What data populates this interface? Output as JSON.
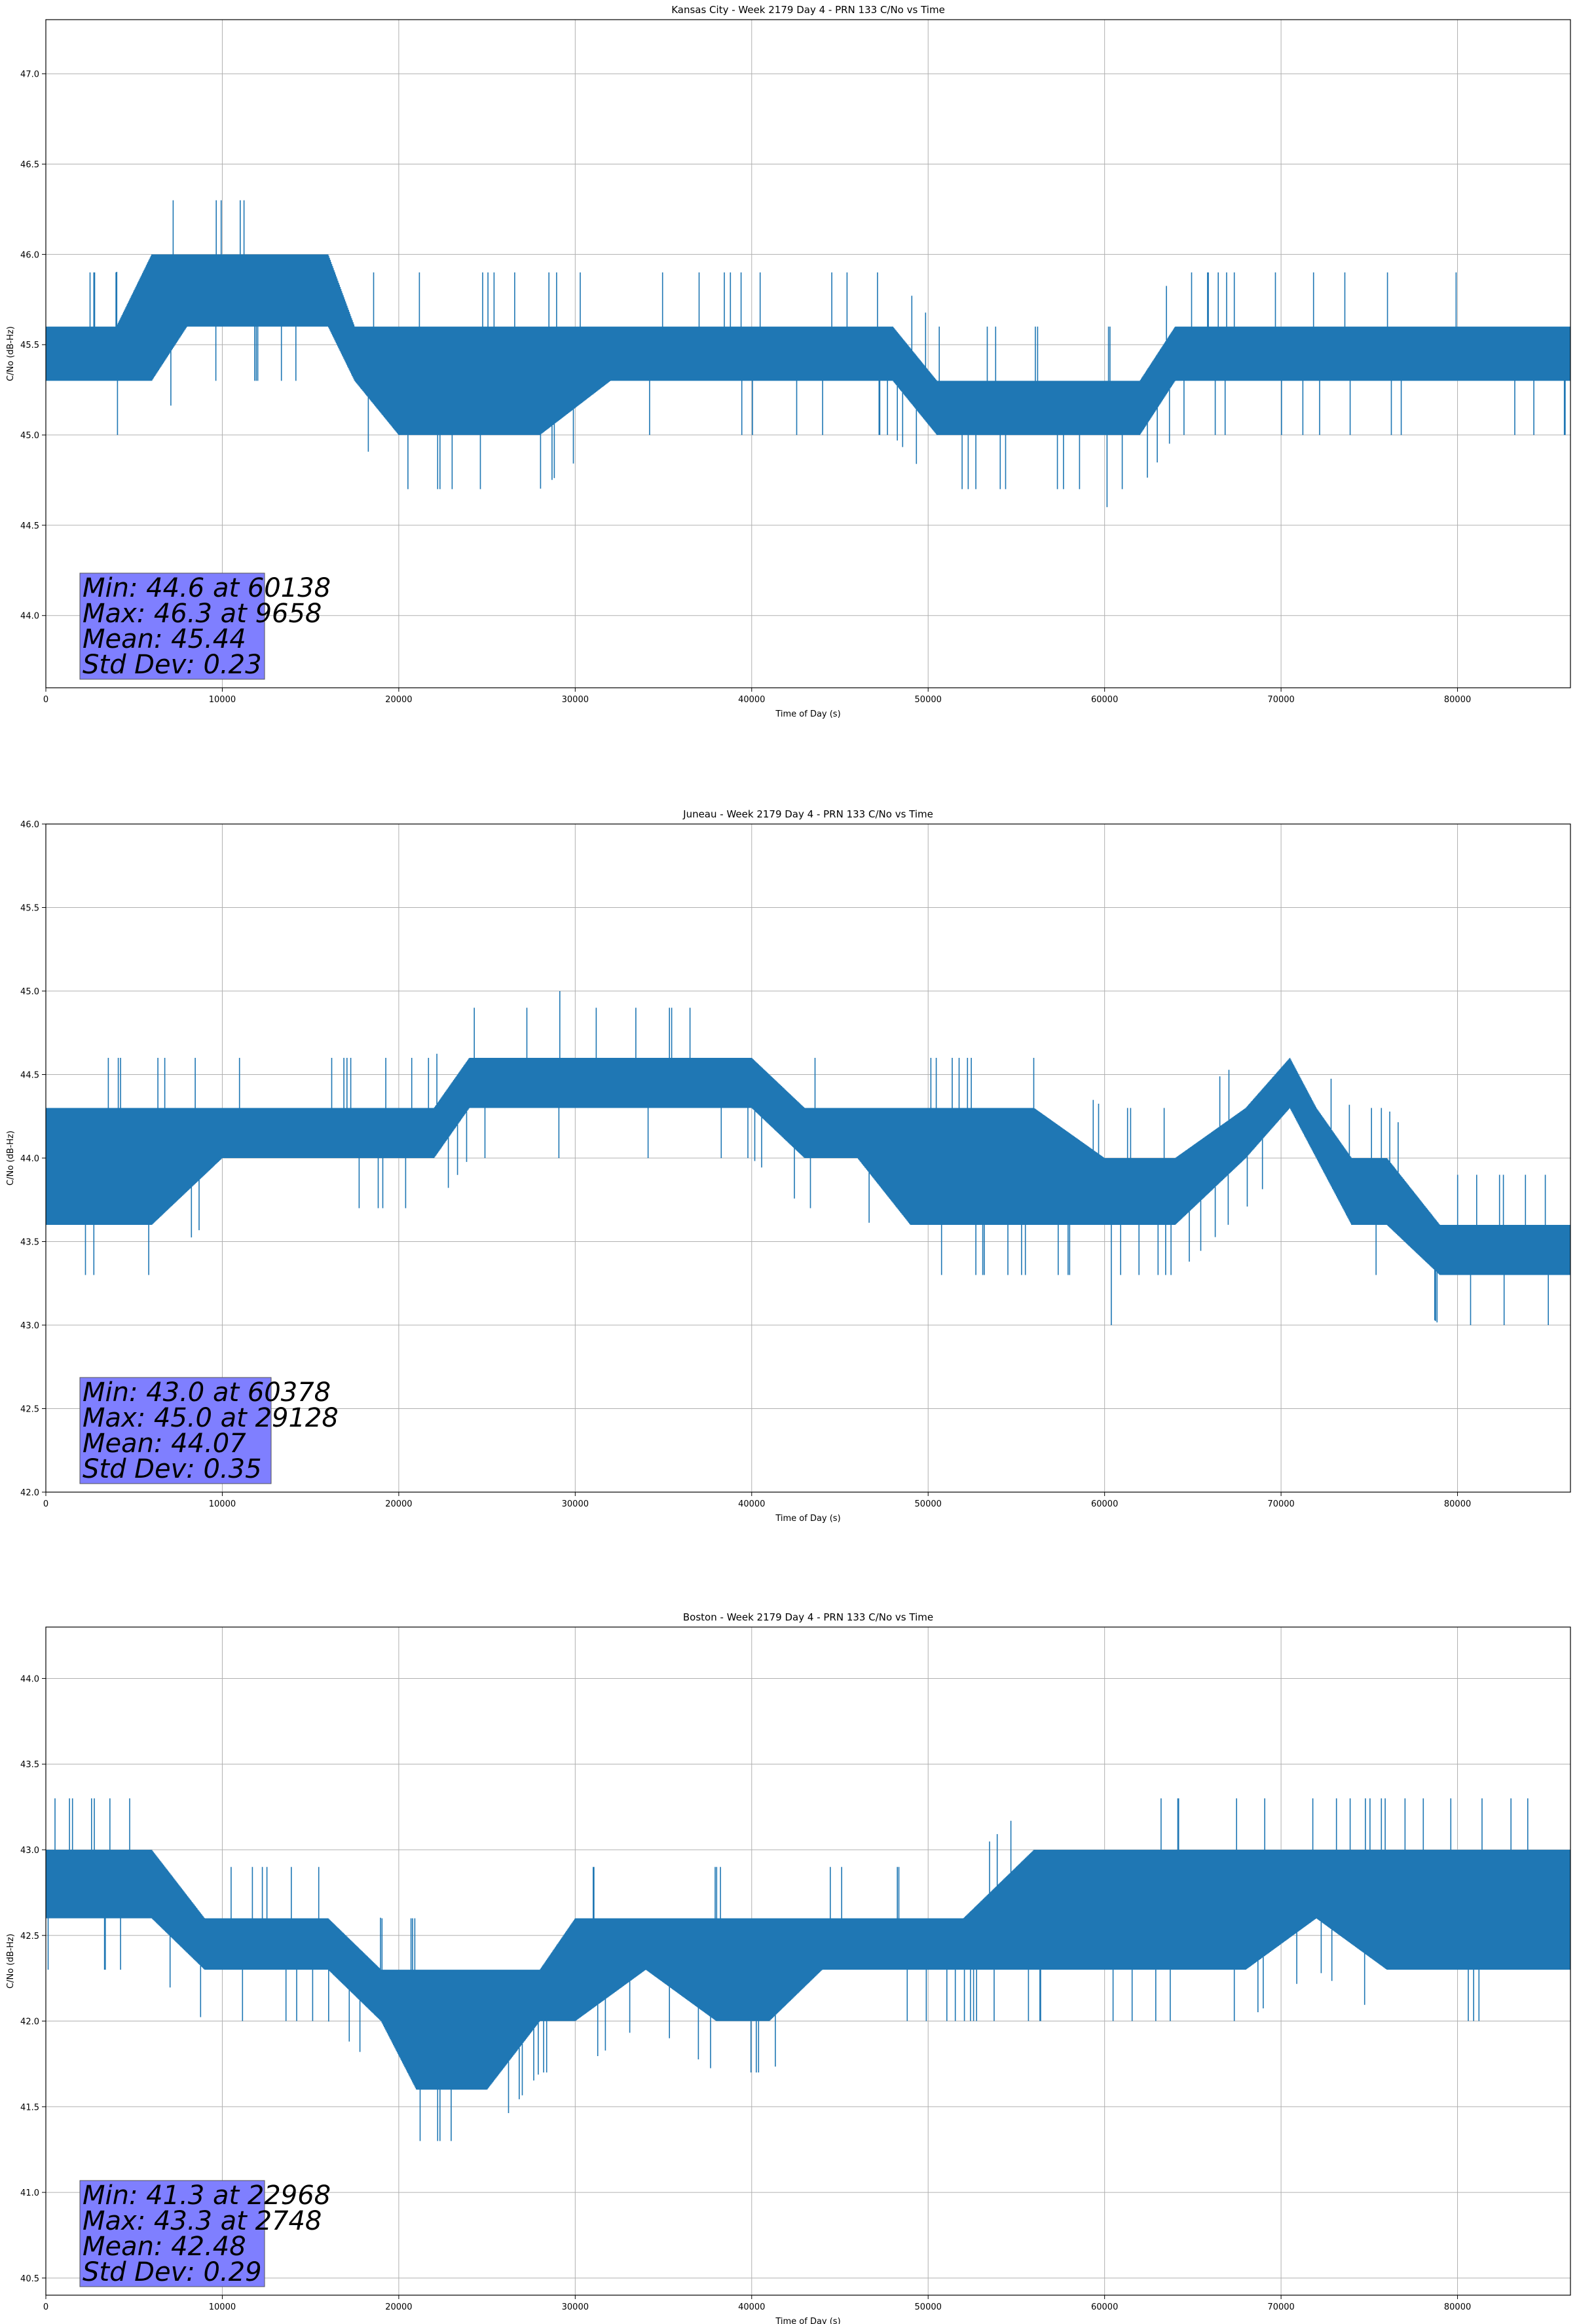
{
  "chart_data": [
    {
      "type": "line",
      "title": "Kansas City - Week 2179 Day 4 - PRN 133 C/No vs Time",
      "xlabel": "Time of Day (s)",
      "ylabel": "C/No (dB-Hz)",
      "xlim": [
        0,
        86400
      ],
      "ylim": [
        43.6,
        47.3
      ],
      "xticks": [
        0,
        10000,
        20000,
        30000,
        40000,
        50000,
        60000,
        70000,
        80000
      ],
      "yticks": [
        "44.0",
        "44.5",
        "45.0",
        "45.5",
        "46.0",
        "46.5",
        "47.0"
      ],
      "grid": true,
      "color": "#1f77b4",
      "series": [
        {
          "x": [
            0,
            2000,
            4000,
            6000,
            8000,
            9658,
            12000,
            14000,
            16000,
            17500,
            20000,
            24000,
            28000,
            32000,
            36000,
            40000,
            44000,
            48000,
            50500,
            54000,
            57000,
            60138,
            62000,
            64000,
            66000,
            70000,
            74000,
            78000,
            82000,
            86400
          ],
          "y": [
            45.5,
            45.6,
            45.4,
            45.7,
            45.9,
            46.3,
            45.9,
            45.9,
            45.8,
            45.5,
            45.3,
            45.4,
            45.5,
            45.4,
            45.5,
            45.4,
            45.5,
            45.4,
            45.1,
            45.1,
            45.2,
            44.6,
            45.2,
            45.3,
            45.5,
            45.5,
            45.6,
            45.5,
            45.5,
            45.5
          ],
          "band_low": [
            45.3,
            45.3,
            45.3,
            45.3,
            45.6,
            45.6,
            45.6,
            45.6,
            45.6,
            45.3,
            45.0,
            45.0,
            45.0,
            45.3,
            45.3,
            45.3,
            45.3,
            45.3,
            45.0,
            45.0,
            45.0,
            45.0,
            45.0,
            45.3,
            45.3,
            45.3,
            45.3,
            45.3,
            45.3,
            45.3
          ],
          "band_high": [
            45.6,
            45.6,
            45.6,
            46.0,
            46.0,
            46.0,
            46.0,
            46.0,
            46.0,
            45.6,
            45.6,
            45.6,
            45.6,
            45.6,
            45.6,
            45.6,
            45.6,
            45.6,
            45.3,
            45.3,
            45.3,
            45.3,
            45.3,
            45.6,
            45.6,
            45.6,
            45.6,
            45.6,
            45.6,
            45.6
          ]
        }
      ],
      "stats_lines": [
        "Min: 44.6 at 60138",
        "Max: 46.3 at 9658",
        "Mean: 45.44",
        "Std Dev: 0.23"
      ]
    },
    {
      "type": "line",
      "title": "Juneau - Week 2179 Day 4 - PRN 133 C/No vs Time",
      "xlabel": "Time of Day (s)",
      "ylabel": "C/No (dB-Hz)",
      "xlim": [
        0,
        86400
      ],
      "ylim": [
        42.0,
        46.0
      ],
      "xticks": [
        0,
        10000,
        20000,
        30000,
        40000,
        50000,
        60000,
        70000,
        80000
      ],
      "yticks": [
        "42.0",
        "42.5",
        "43.0",
        "43.5",
        "44.0",
        "44.5",
        "45.0",
        "45.5",
        "46.0"
      ],
      "grid": true,
      "color": "#1f77b4",
      "series": [
        {
          "x": [
            0,
            3000,
            6000,
            10000,
            14000,
            18000,
            22000,
            24000,
            29128,
            32000,
            36000,
            40000,
            43000,
            46000,
            49000,
            52000,
            56000,
            60000,
            60378,
            64000,
            68000,
            70500,
            72000,
            74000,
            76000,
            79000,
            82000,
            86400
          ],
          "y": [
            43.9,
            43.9,
            44.0,
            44.1,
            44.2,
            44.1,
            44.1,
            44.4,
            45.0,
            44.5,
            44.5,
            44.4,
            44.2,
            44.1,
            44.0,
            43.9,
            44.1,
            43.8,
            43.0,
            43.8,
            44.1,
            44.4,
            44.2,
            44.0,
            43.7,
            43.5,
            43.5,
            43.5
          ],
          "band_low": [
            43.6,
            43.6,
            43.6,
            44.0,
            44.0,
            44.0,
            44.0,
            44.3,
            44.3,
            44.3,
            44.3,
            44.3,
            44.0,
            44.0,
            43.6,
            43.6,
            43.6,
            43.6,
            43.6,
            43.6,
            44.0,
            44.3,
            44.0,
            43.6,
            43.6,
            43.3,
            43.3,
            43.3
          ],
          "band_high": [
            44.3,
            44.3,
            44.3,
            44.3,
            44.3,
            44.3,
            44.3,
            44.6,
            44.6,
            44.6,
            44.6,
            44.6,
            44.3,
            44.3,
            44.3,
            44.3,
            44.3,
            44.0,
            44.0,
            44.0,
            44.3,
            44.6,
            44.3,
            44.0,
            44.0,
            43.6,
            43.6,
            43.6
          ]
        }
      ],
      "stats_lines": [
        "Min: 43.0 at 60378",
        "Max: 45.0 at 29128",
        "Mean: 44.07",
        "Std Dev: 0.35"
      ]
    },
    {
      "type": "line",
      "title": "Boston - Week 2179 Day 4 - PRN 133 C/No vs Time",
      "xlabel": "Time of Day (s)",
      "ylabel": "C/No (dB-Hz)",
      "xlim": [
        0,
        86400
      ],
      "ylim": [
        40.4,
        44.3
      ],
      "xticks": [
        0,
        10000,
        20000,
        30000,
        40000,
        50000,
        60000,
        70000,
        80000
      ],
      "yticks": [
        "40.5",
        "41.0",
        "41.5",
        "42.0",
        "42.5",
        "43.0",
        "43.5",
        "44.0"
      ],
      "grid": true,
      "color": "#1f77b4",
      "series": [
        {
          "x": [
            0,
            2748,
            6000,
            9000,
            12000,
            16000,
            19000,
            21000,
            22968,
            25000,
            28000,
            30000,
            34000,
            38000,
            41000,
            44000,
            48000,
            52000,
            56000,
            60000,
            64000,
            68000,
            72000,
            76000,
            80000,
            84000,
            86400
          ],
          "y": [
            42.8,
            43.3,
            42.8,
            42.6,
            42.5,
            42.4,
            42.2,
            42.0,
            41.3,
            41.9,
            42.1,
            42.2,
            42.4,
            42.3,
            42.2,
            42.4,
            42.5,
            42.5,
            42.6,
            42.7,
            42.7,
            42.7,
            42.8,
            42.7,
            42.7,
            42.7,
            42.7
          ],
          "band_low": [
            42.6,
            42.6,
            42.6,
            42.3,
            42.3,
            42.3,
            42.0,
            41.6,
            41.6,
            41.6,
            42.0,
            42.0,
            42.3,
            42.0,
            42.0,
            42.3,
            42.3,
            42.3,
            42.3,
            42.3,
            42.3,
            42.3,
            42.6,
            42.3,
            42.3,
            42.3,
            42.3
          ],
          "band_high": [
            43.0,
            43.0,
            43.0,
            42.6,
            42.6,
            42.6,
            42.3,
            42.3,
            42.3,
            42.3,
            42.3,
            42.6,
            42.6,
            42.6,
            42.6,
            42.6,
            42.6,
            42.6,
            43.0,
            43.0,
            43.0,
            43.0,
            43.0,
            43.0,
            43.0,
            43.0,
            43.0
          ]
        }
      ],
      "stats_lines": [
        "Min: 41.3 at 22968",
        "Max: 43.3 at 2748",
        "Mean: 42.48",
        "Std Dev: 0.29"
      ]
    }
  ]
}
